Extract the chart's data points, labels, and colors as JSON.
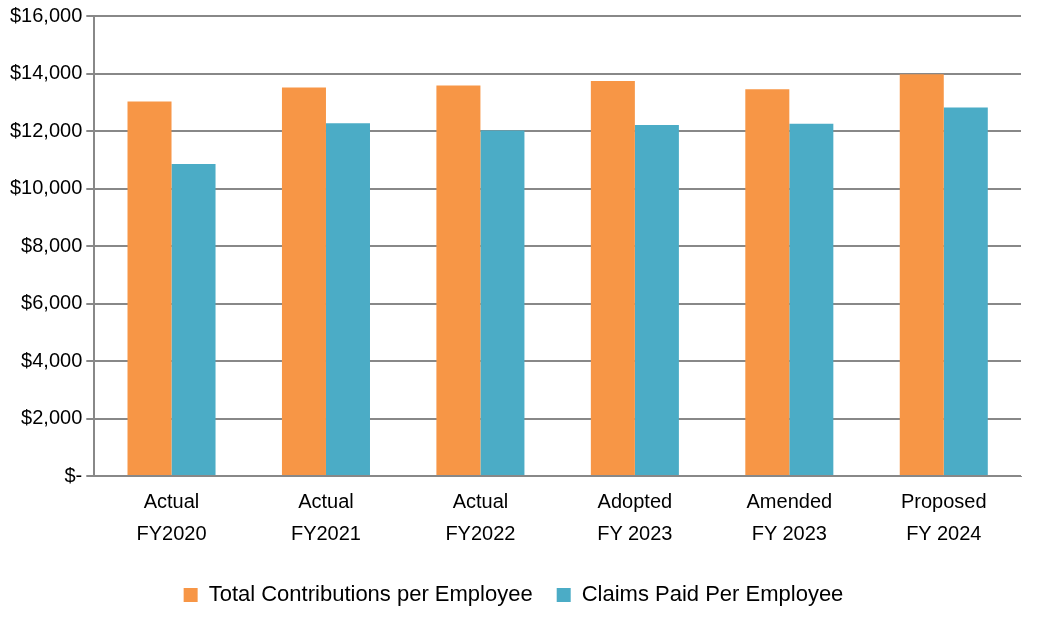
{
  "chart_data": {
    "type": "bar",
    "categories": [
      "Actual FY2020",
      "Actual FY2021",
      "Actual FY2022",
      "Adopted FY 2023",
      "Amended FY 2023",
      "Proposed FY 2024"
    ],
    "series": [
      {
        "name": "Total Contributions per Employee",
        "color": "#f79646",
        "values": [
          13030,
          13510,
          13580,
          13740,
          13450,
          13970
        ]
      },
      {
        "name": "Claims Paid Per Employee",
        "color": "#4bacc6",
        "values": [
          10850,
          12270,
          12020,
          12210,
          12250,
          12820
        ]
      }
    ],
    "ylim": [
      0,
      16000
    ],
    "yticks": [
      {
        "value": 0,
        "label": "$-"
      },
      {
        "value": 2000,
        "label": "$2,000"
      },
      {
        "value": 4000,
        "label": "$4,000"
      },
      {
        "value": 6000,
        "label": "$6,000"
      },
      {
        "value": 8000,
        "label": "$8,000"
      },
      {
        "value": 10000,
        "label": "$10,000"
      },
      {
        "value": 12000,
        "label": "$12,000"
      },
      {
        "value": 14000,
        "label": "$14,000"
      },
      {
        "value": 16000,
        "label": "$16,000"
      }
    ],
    "grid": "y",
    "legend": "bottom"
  }
}
